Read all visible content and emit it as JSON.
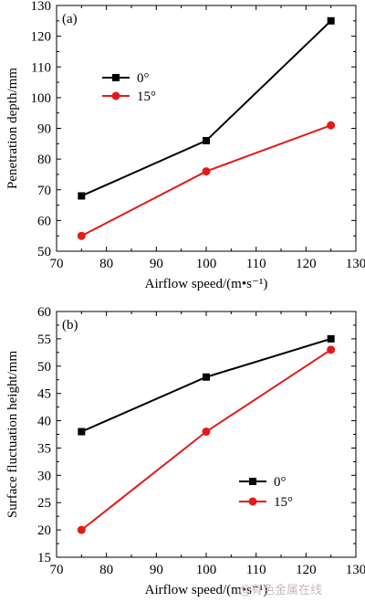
{
  "chart_data": [
    {
      "type": "line",
      "panel_label": "(a)",
      "title": "",
      "xlabel": "Airflow speed/(m•s⁻¹)",
      "ylabel": "Penetration depth/mm",
      "xlim": [
        70,
        130
      ],
      "ylim": [
        50,
        130
      ],
      "xticks": [
        70,
        80,
        90,
        100,
        110,
        120,
        130
      ],
      "yticks": [
        50,
        60,
        70,
        80,
        90,
        100,
        110,
        120,
        130
      ],
      "grid": false,
      "legend_position": "upper-left",
      "x": [
        75,
        100,
        125
      ],
      "series": [
        {
          "name": "0°",
          "values": [
            68,
            86,
            125
          ],
          "color": "#000000",
          "marker": "square"
        },
        {
          "name": "15°",
          "values": [
            55,
            76,
            91
          ],
          "color": "#e41a1a",
          "marker": "circle"
        }
      ]
    },
    {
      "type": "line",
      "panel_label": "(b)",
      "title": "",
      "xlabel": "Airflow speed/(m•s⁻¹)",
      "ylabel": "Surface fluctuation height/mm",
      "xlim": [
        70,
        130
      ],
      "ylim": [
        15,
        60
      ],
      "xticks": [
        70,
        80,
        90,
        100,
        110,
        120,
        130
      ],
      "yticks": [
        15,
        20,
        25,
        30,
        35,
        40,
        45,
        50,
        55,
        60
      ],
      "grid": false,
      "legend_position": "lower-right",
      "x": [
        75,
        100,
        125
      ],
      "series": [
        {
          "name": "0°",
          "values": [
            38,
            48,
            55
          ],
          "color": "#000000",
          "marker": "square"
        },
        {
          "name": "15°",
          "values": [
            20,
            38,
            53
          ],
          "color": "#e41a1a",
          "marker": "circle"
        }
      ]
    }
  ],
  "watermark": "@有色金属在线"
}
